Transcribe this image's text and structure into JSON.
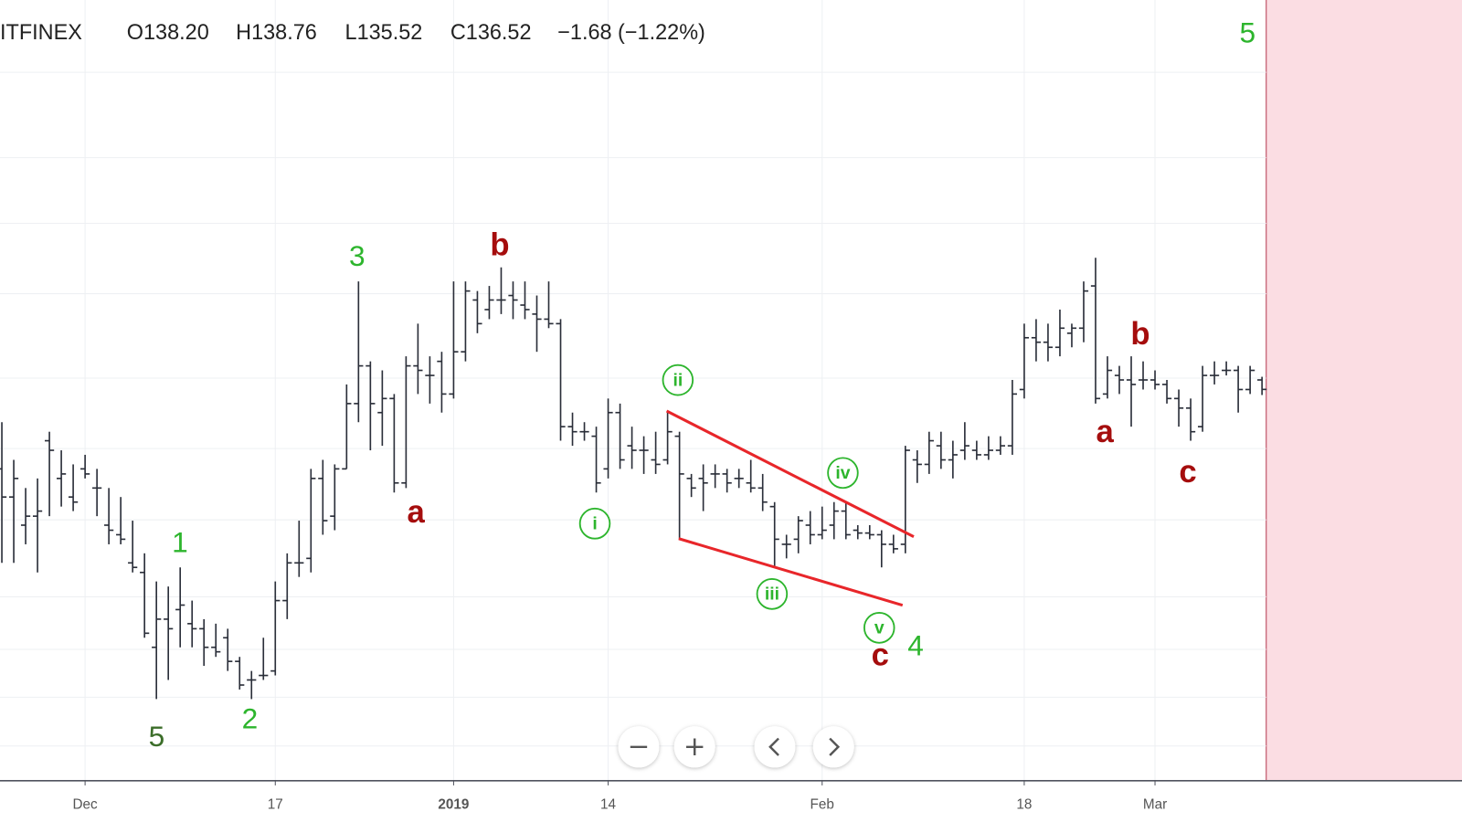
{
  "chart_data": {
    "type": "ohlc",
    "header": {
      "exchange": "ITFINEX",
      "open": "O138.20",
      "high": "H138.76",
      "low": "L135.52",
      "close": "C136.52",
      "change": "−1.68 (−1.22%)"
    },
    "categories": [
      null,
      null,
      null,
      null,
      null,
      null,
      null,
      "Dec",
      null,
      null,
      null,
      null,
      null,
      null,
      null,
      null,
      null,
      null,
      null,
      null,
      null,
      null,
      null,
      "17",
      null,
      null,
      null,
      null,
      null,
      null,
      null,
      null,
      null,
      null,
      null,
      null,
      null,
      null,
      "2019",
      null,
      null,
      null,
      null,
      null,
      null,
      null,
      null,
      null,
      null,
      null,
      null,
      "14",
      null,
      null,
      null,
      null,
      null,
      null,
      null,
      null,
      null,
      null,
      null,
      null,
      null,
      null,
      null,
      null,
      null,
      "Feb",
      null,
      null,
      null,
      null,
      null,
      null,
      null,
      null,
      null,
      null,
      null,
      null,
      null,
      null,
      null,
      null,
      "18",
      null,
      null,
      null,
      null,
      null,
      null,
      null,
      null,
      null,
      null,
      "Mar",
      null,
      null,
      null,
      null,
      null,
      null,
      null,
      null,
      null
    ],
    "open": [
      122.4,
      117.4,
      112.4,
      114.0,
      127.4,
      120.7,
      117.4,
      122.4,
      119.0,
      112.4,
      110.7,
      105.7,
      104.0,
      90.7,
      95.7,
      97.4,
      94.9,
      94.0,
      90.7,
      92.4,
      88.2,
      84.9,
      85.7,
      86.5,
      99.0,
      105.7,
      106.5,
      120.7,
      114.0,
      122.4,
      134.0,
      140.7,
      132.4,
      134.9,
      119.9,
      140.7,
      139.0,
      141.5,
      135.7,
      143.2,
      152.4,
      150.7,
      152.4,
      153.2,
      151.5,
      149.9,
      149.0,
      148.2,
      129.9,
      129.0,
      128.2,
      122.4,
      132.4,
      126.5,
      125.7,
      124.0,
      124.0,
      128.2,
      120.7,
      120.7,
      121.5,
      121.5,
      120.7,
      119.9,
      119.0,
      115.7,
      109.0,
      109.9,
      112.4,
      110.7,
      112.4,
      114.9,
      111.5,
      111.0,
      110.7,
      109.0,
      109.0,
      124.0,
      123.2,
      126.5,
      124.0,
      125.7,
      125.7,
      124.9,
      125.7,
      126.5,
      136.5,
      145.7,
      144.9,
      144.0,
      146.5,
      147.4,
      154.9,
      135.7,
      139.0,
      138.2,
      138.2,
      138.2,
      137.4,
      134.9,
      133.2,
      129.9,
      139.0,
      139.9,
      139.9,
      136.5,
      138.2
    ],
    "high": [
      130.7,
      124.0,
      119.0,
      120.7,
      129.0,
      125.7,
      123.2,
      124.9,
      122.4,
      119.0,
      117.4,
      113.2,
      107.4,
      102.4,
      101.5,
      104.9,
      99.0,
      95.7,
      94.9,
      94.0,
      89.0,
      86.5,
      92.4,
      102.4,
      107.4,
      113.2,
      122.4,
      124.0,
      123.2,
      137.4,
      155.7,
      141.5,
      139.9,
      135.7,
      142.4,
      148.2,
      142.4,
      143.2,
      155.7,
      155.7,
      154.0,
      154.9,
      158.2,
      155.7,
      155.7,
      153.2,
      155.7,
      149.0,
      132.4,
      130.7,
      129.9,
      134.9,
      134.0,
      129.9,
      128.2,
      129.0,
      132.4,
      129.0,
      121.5,
      123.2,
      123.2,
      122.4,
      122.4,
      124.0,
      121.5,
      116.5,
      110.7,
      114.0,
      114.9,
      115.7,
      116.5,
      116.5,
      112.4,
      112.4,
      111.5,
      110.7,
      126.5,
      125.7,
      129.0,
      129.0,
      127.4,
      130.7,
      127.4,
      128.2,
      128.2,
      138.2,
      148.2,
      149.0,
      148.2,
      150.7,
      148.2,
      155.7,
      159.9,
      142.4,
      140.7,
      142.4,
      141.5,
      139.9,
      138.2,
      136.5,
      134.9,
      140.7,
      141.5,
      141.5,
      140.7,
      140.7,
      138.76
    ],
    "low": [
      105.7,
      105.7,
      109.0,
      104.0,
      114.0,
      115.7,
      114.9,
      120.7,
      114.0,
      109.0,
      109.0,
      104.0,
      92.4,
      81.5,
      84.9,
      90.7,
      90.7,
      87.4,
      89.0,
      86.5,
      83.2,
      81.5,
      84.9,
      85.7,
      95.7,
      103.2,
      104.0,
      110.7,
      111.5,
      122.4,
      130.7,
      125.7,
      126.5,
      118.2,
      119.0,
      135.7,
      134.0,
      132.4,
      134.9,
      141.5,
      146.5,
      149.0,
      149.9,
      149.0,
      149.0,
      143.2,
      147.4,
      127.4,
      126.5,
      127.4,
      118.2,
      120.7,
      122.4,
      122.4,
      121.5,
      121.5,
      123.2,
      109.9,
      117.4,
      114.9,
      119.0,
      118.2,
      119.0,
      118.2,
      114.9,
      104.9,
      106.5,
      107.4,
      109.0,
      109.9,
      109.9,
      109.9,
      109.9,
      109.9,
      104.9,
      107.4,
      107.4,
      119.9,
      121.5,
      122.4,
      120.7,
      124.0,
      124.0,
      124.0,
      124.9,
      124.9,
      134.9,
      141.5,
      141.5,
      142.4,
      144.0,
      144.9,
      134.0,
      134.9,
      135.7,
      129.9,
      136.5,
      136.5,
      134.0,
      129.9,
      127.4,
      129.0,
      137.4,
      139.0,
      132.4,
      135.7,
      135.52
    ],
    "close": [
      117.4,
      120.7,
      114.0,
      114.9,
      125.7,
      121.5,
      116.5,
      121.5,
      119.0,
      111.5,
      109.9,
      104.9,
      93.2,
      95.7,
      94.0,
      98.2,
      94.0,
      90.7,
      89.9,
      88.2,
      84.0,
      84.9,
      85.7,
      99.0,
      105.7,
      105.7,
      120.7,
      113.2,
      122.4,
      134.0,
      140.7,
      134.0,
      134.9,
      119.9,
      140.7,
      139.9,
      139.0,
      135.7,
      143.2,
      154.0,
      148.2,
      152.4,
      152.4,
      152.4,
      150.7,
      149.0,
      148.2,
      129.9,
      129.0,
      129.0,
      119.9,
      132.4,
      124.0,
      125.7,
      125.7,
      123.2,
      129.0,
      121.5,
      119.0,
      119.9,
      121.5,
      119.9,
      120.7,
      119.0,
      116.5,
      109.9,
      109.0,
      113.2,
      110.7,
      111.5,
      114.9,
      110.7,
      111.0,
      110.7,
      109.0,
      108.2,
      125.7,
      123.2,
      127.4,
      124.0,
      124.9,
      126.5,
      124.9,
      125.7,
      126.5,
      135.7,
      145.7,
      144.9,
      144.0,
      147.4,
      147.4,
      154.0,
      134.9,
      139.9,
      138.2,
      137.4,
      138.2,
      137.4,
      134.9,
      133.2,
      129.0,
      139.0,
      139.0,
      139.9,
      136.5,
      139.9,
      136.52
    ],
    "color": "#2a2e39",
    "ylim": [
      67.0,
      205.7
    ],
    "grid": true,
    "annotations": [
      {
        "text": "5",
        "color": "#3c6e2a"
      },
      {
        "text": "1",
        "color": "#2db52d"
      },
      {
        "text": "2",
        "color": "#2db52d"
      },
      {
        "text": "3",
        "color": "#2db52d"
      },
      {
        "text": "a",
        "color": "#a50d0d"
      },
      {
        "text": "b",
        "color": "#a50d0d"
      },
      {
        "text": "i",
        "color": "#2db52d"
      },
      {
        "text": "ii",
        "color": "#2db52d"
      },
      {
        "text": "iii",
        "color": "#2db52d"
      },
      {
        "text": "iv",
        "color": "#2db52d"
      },
      {
        "text": "v",
        "color": "#2db52d"
      },
      {
        "text": "c",
        "color": "#a50d0d"
      },
      {
        "text": "4",
        "color": "#2db52d"
      },
      {
        "text": "a",
        "color": "#a50d0d"
      },
      {
        "text": "b",
        "color": "#a50d0d"
      },
      {
        "text": "c",
        "color": "#a50d0d"
      },
      {
        "text": "5",
        "color": "#2db52d"
      }
    ]
  }
}
